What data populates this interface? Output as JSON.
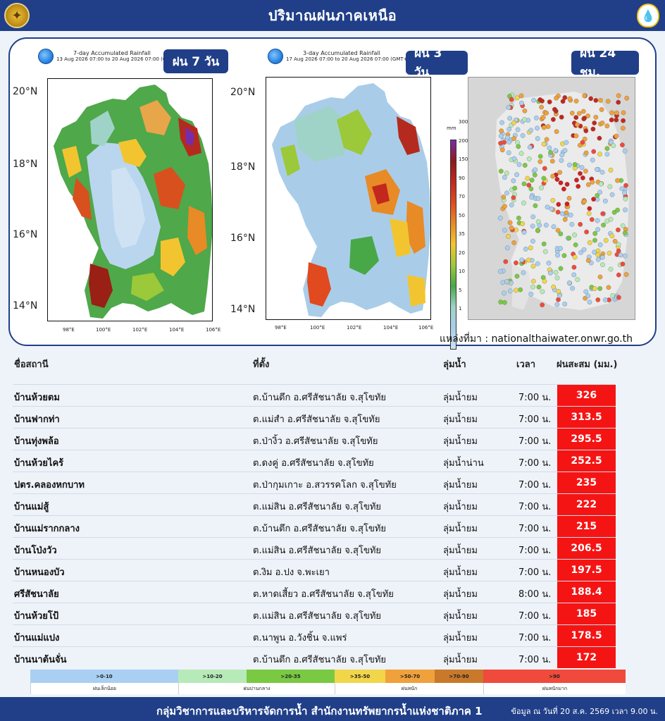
{
  "header": {
    "title": "ปริมาณฝนภาคเหนือ"
  },
  "maps": {
    "map7": {
      "badge": "ฝน 7 วัน",
      "title": "7-day Accumulated Rainfall",
      "period": "13 Aug 2026 07:00 to 20 Aug 2026 07:00 (GMT+7)"
    },
    "map3": {
      "badge": "ฝน 3 วัน",
      "title": "3-day Accumulated Rainfall",
      "period": "17 Aug 2026 07:00 to 20 Aug 2026 07:00 (GMT+7)"
    },
    "map24": {
      "badge": "ฝน 24 ชม."
    },
    "lat_labels": [
      "20°N",
      "18°N",
      "16°N",
      "14°N"
    ],
    "lon_labels": [
      "98°E",
      "100°E",
      "102°E",
      "104°E",
      "106°E"
    ],
    "colorbar": {
      "unit": "mm",
      "labels": [
        "300",
        "200",
        "150",
        "90",
        "70",
        "50",
        "35",
        "20",
        "10",
        "5",
        "1"
      ],
      "colors": [
        "#7a2ca8",
        "#8c1c1c",
        "#c2281e",
        "#e04a1e",
        "#e88a26",
        "#f2c530",
        "#9bc93a",
        "#48a848",
        "#9fd3c8",
        "#a9cde8",
        "#cfe2f3"
      ]
    },
    "source": "แหล่งที่มา : nationalthaiwater.onwr.go.th"
  },
  "table": {
    "headers": {
      "station": "ชื่อสถานี",
      "location": "ที่ตั้ง",
      "basin": "ลุ่มน้ำ",
      "time": "เวลา",
      "rain": "ฝนสะสม (มม.)"
    },
    "rows": [
      {
        "station": "บ้านห้วยตม",
        "location": "ต.บ้านตึก อ.ศรีสัชนาลัย จ.สุโขทัย",
        "basin": "ลุ่มน้ำยม",
        "time": "7:00 น.",
        "rain": "326"
      },
      {
        "station": "บ้านฟากท่า",
        "location": "ต.แม่สำ อ.ศรีสัชนาลัย จ.สุโขทัย",
        "basin": "ลุ่มน้ำยม",
        "time": "7:00 น.",
        "rain": "313.5"
      },
      {
        "station": "บ้านทุ่งพล้อ",
        "location": "ต.ป่างิ้ว อ.ศรีสัชนาลัย จ.สุโขทัย",
        "basin": "ลุ่มน้ำยม",
        "time": "7:00 น.",
        "rain": "295.5"
      },
      {
        "station": "บ้านห้วยไคร้",
        "location": "ต.ดงคู่ อ.ศรีสัชนาลัย จ.สุโขทัย",
        "basin": "ลุ่มน้ำน่าน",
        "time": "7:00 น.",
        "rain": "252.5"
      },
      {
        "station": "ปตร.คลองหกบาท",
        "location": "ต.ป่ากุมเกาะ อ.สวรรคโลก จ.สุโขทัย",
        "basin": "ลุ่มน้ำยม",
        "time": "7:00 น.",
        "rain": "235"
      },
      {
        "station": "บ้านแม่สู้",
        "location": "ต.แม่สิน อ.ศรีสัชนาลัย จ.สุโขทัย",
        "basin": "ลุ่มน้ำยม",
        "time": "7:00 น.",
        "rain": "222"
      },
      {
        "station": "บ้านแม่รากกลาง",
        "location": "ต.บ้านตึก อ.ศรีสัชนาลัย จ.สุโขทัย",
        "basin": "ลุ่มน้ำยม",
        "time": "7:00 น.",
        "rain": "215"
      },
      {
        "station": "บ้านโป่งวัว",
        "location": "ต.แม่สิน อ.ศรีสัชนาลัย จ.สุโขทัย",
        "basin": "ลุ่มน้ำยม",
        "time": "7:00 น.",
        "rain": "206.5"
      },
      {
        "station": "บ้านหนองบัว",
        "location": "ต.งิม อ.ปง จ.พะเยา",
        "basin": "ลุ่มน้ำยม",
        "time": "7:00 น.",
        "rain": "197.5"
      },
      {
        "station": "ศรีสัชนาลัย",
        "location": "ต.หาดเสี้ยว อ.ศรีสัชนาลัย จ.สุโขทัย",
        "basin": "ลุ่มน้ำยม",
        "time": "8:00 น.",
        "rain": "188.4"
      },
      {
        "station": "บ้านห้วยโป้",
        "location": "ต.แม่สิน อ.ศรีสัชนาลัย จ.สุโขทัย",
        "basin": "ลุ่มน้ำยม",
        "time": "7:00 น.",
        "rain": "185"
      },
      {
        "station": "บ้านแม่แปง",
        "location": "ต.นาพูน อ.วังชิ้น จ.แพร่",
        "basin": "ลุ่มน้ำยม",
        "time": "7:00 น.",
        "rain": "178.5"
      },
      {
        "station": "บ้านนาต้นจั่น",
        "location": "ต.บ้านตึก อ.ศรีสัชนาลัย จ.สุโขทัย",
        "basin": "ลุ่มน้ำยม",
        "time": "7:00 น.",
        "rain": "172"
      }
    ]
  },
  "legend": {
    "ranges": [
      {
        "label": ">0-10",
        "color": "#a9d0f2"
      },
      {
        "label": ">10-20",
        "color": "#b6eab8"
      },
      {
        "label": ">20-35",
        "color": "#7ac943"
      },
      {
        "label": ">35-50",
        "color": "#f1d64a"
      },
      {
        "label": ">50-70",
        "color": "#f0a13c"
      },
      {
        "label": ">70-90",
        "color": "#c9792a"
      },
      {
        "label": ">90",
        "color": "#f04a3c"
      }
    ],
    "categories": [
      "ฝนเล็กน้อย",
      "ฝนปานกลาง",
      "ฝนหนัก",
      "ฝนหนักมาก"
    ]
  },
  "footer": {
    "org": "กลุ่มวิชาการและบริหารจัดการน้ำ สำนักงานทรัพยากรน้ำแห่งชาติภาค 1",
    "date": "ข้อมูล ณ วันที่ 20 ส.ค. 2569  เวลา  9.00 น."
  }
}
